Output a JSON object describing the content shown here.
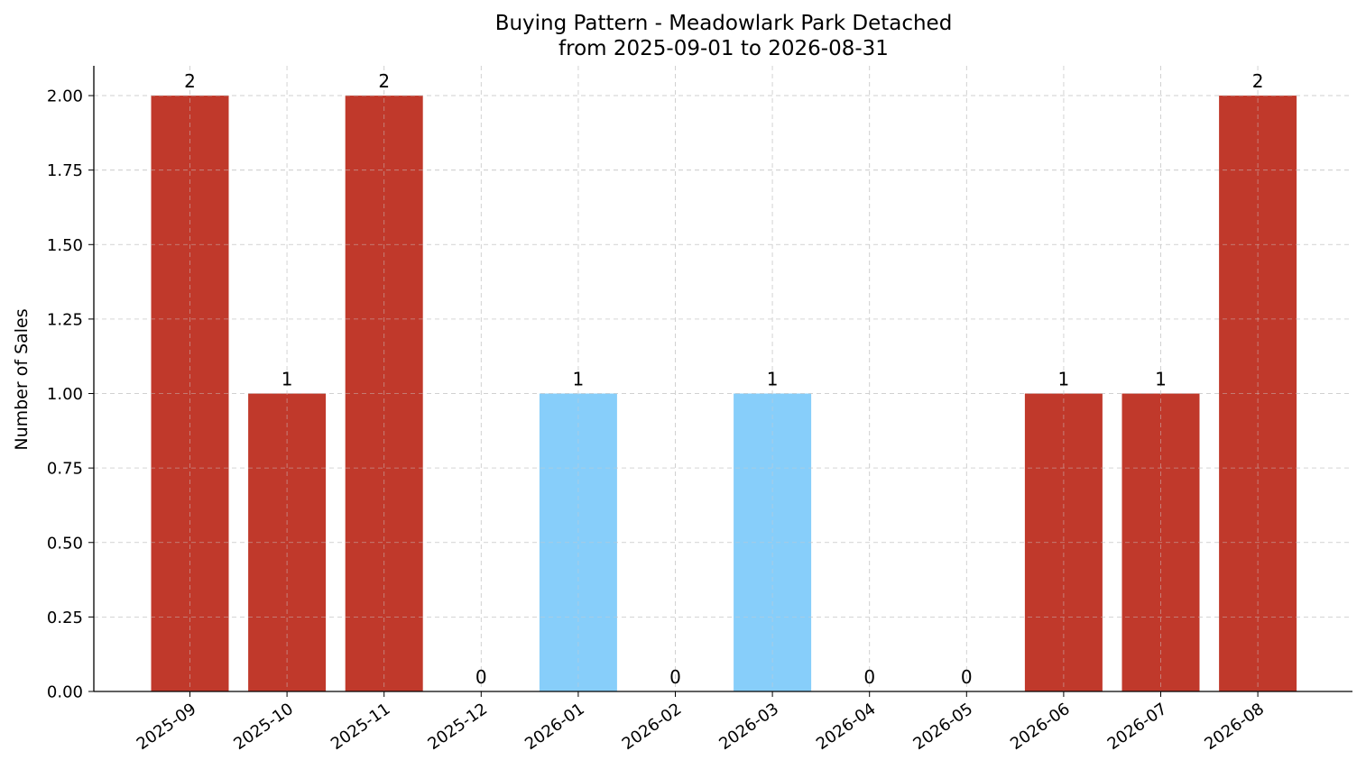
{
  "chart_data": {
    "type": "bar",
    "title": "Buying Pattern - Meadowlark Park Detached",
    "subtitle": "from 2025-09-01 to 2026-08-31",
    "xlabel": "",
    "ylabel": "Number of Sales",
    "categories": [
      "2025-09",
      "2025-10",
      "2025-11",
      "2025-12",
      "2026-01",
      "2026-02",
      "2026-03",
      "2026-04",
      "2026-05",
      "2026-06",
      "2026-07",
      "2026-08"
    ],
    "values": [
      2,
      1,
      2,
      0,
      1,
      0,
      1,
      0,
      0,
      1,
      1,
      2
    ],
    "bar_colors": [
      "#c0392b",
      "#c0392b",
      "#c0392b",
      "#c0392b",
      "#87cefa",
      "#c0392b",
      "#87cefa",
      "#c0392b",
      "#c0392b",
      "#c0392b",
      "#c0392b",
      "#c0392b"
    ],
    "ylim": [
      0,
      2.1
    ],
    "yticks": [
      "0.00",
      "0.25",
      "0.50",
      "0.75",
      "1.00",
      "1.25",
      "1.50",
      "1.75",
      "2.00"
    ],
    "grid": true,
    "legend": "none"
  },
  "colors": {
    "high": "#c0392b",
    "low": "#87cefa",
    "grid": "#cccccc",
    "axis": "#000000"
  }
}
